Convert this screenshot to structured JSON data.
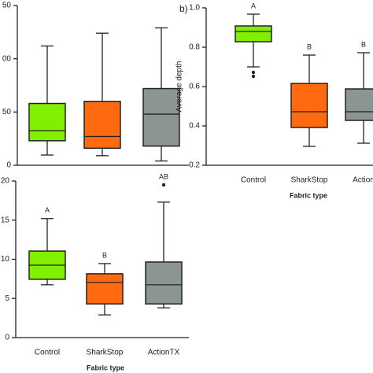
{
  "chart_data": [
    {
      "type": "box",
      "categories": [
        null,
        null,
        null
      ],
      "colors": [
        "#80f000",
        "#ff6a10",
        "#8c9494"
      ],
      "ylim": [
        0,
        150
      ],
      "yticks": [
        0,
        50,
        {
          "value": 100,
          "label": "00"
        },
        {
          "value": 150,
          "label": "50"
        }
      ],
      "boxes": [
        {
          "min": 9.6,
          "q1": 23,
          "median": 32.5,
          "q3": 58,
          "max": 112
        },
        {
          "min": 9,
          "q1": 16,
          "median": 27,
          "q3": 60,
          "max": 124
        },
        {
          "min": 4,
          "q1": 18,
          "median": 48,
          "q3": 72,
          "max": 129
        }
      ]
    },
    {
      "type": "box",
      "panel_label": "b)",
      "y_label": "Average depth",
      "x_label": "Fabric type",
      "categories": [
        "Control",
        "SharkStop",
        "Action"
      ],
      "colors": [
        "#80f000",
        "#ff6a10",
        "#8c9494"
      ],
      "ylim": [
        0.2,
        1.0
      ],
      "yticks": [
        0.2,
        0.4,
        0.6,
        0.8,
        {
          "value": 1.0,
          "label": "1.0"
        }
      ],
      "letters": [
        "A",
        "B",
        "B"
      ],
      "boxes": [
        {
          "min": 0.7,
          "q1": 0.828,
          "median": 0.88,
          "q3": 0.908,
          "max": 0.968,
          "outliers": [
            0.672,
            0.652
          ]
        },
        {
          "min": 0.296,
          "q1": 0.392,
          "median": 0.472,
          "q3": 0.616,
          "max": 0.76
        },
        {
          "min": 0.312,
          "q1": 0.428,
          "median": 0.472,
          "q3": 0.588,
          "max": 0.772
        }
      ]
    },
    {
      "type": "box",
      "x_label": "Fabric type",
      "categories": [
        "Control",
        "SharkStop",
        "ActionTX"
      ],
      "colors": [
        "#80f000",
        "#ff6a10",
        "#8c9494"
      ],
      "ylim": [
        0,
        20
      ],
      "yticks": [
        0,
        5,
        10,
        15,
        20
      ],
      "letters": [
        "A",
        "B",
        "AB"
      ],
      "boxes": [
        {
          "min": 6.75,
          "q1": 7.45,
          "median": 9.25,
          "q3": 11.05,
          "max": 15.2
        },
        {
          "min": 2.9,
          "q1": 4.3,
          "median": 7.05,
          "q3": 8.15,
          "max": 9.45
        },
        {
          "min": 3.8,
          "q1": 4.3,
          "median": 6.75,
          "q3": 9.65,
          "max": 17.3,
          "outliers": [
            19.5
          ]
        }
      ]
    }
  ]
}
